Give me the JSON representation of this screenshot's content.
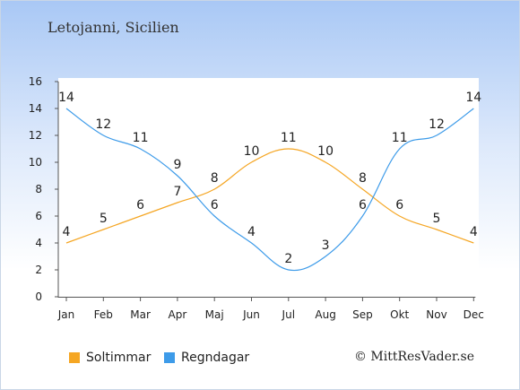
{
  "title": "Letojanni, Sicilien",
  "credit": "© MittResVader.se",
  "chart_data": {
    "type": "line",
    "categories": [
      "Jan",
      "Feb",
      "Mar",
      "Apr",
      "Maj",
      "Jun",
      "Jul",
      "Aug",
      "Sep",
      "Okt",
      "Nov",
      "Dec"
    ],
    "ylim": [
      0,
      16
    ],
    "yticks": [
      0,
      2,
      4,
      6,
      8,
      10,
      12,
      14,
      16
    ],
    "grid": false,
    "legend_position": "bottom-left",
    "series": [
      {
        "name": "Soltimmar",
        "color": "#f5a623",
        "values": [
          4,
          5,
          6,
          7,
          8,
          10,
          11,
          10,
          8,
          6,
          5,
          4
        ]
      },
      {
        "name": "Regndagar",
        "color": "#3d9be9",
        "values": [
          14,
          12,
          11,
          9,
          6,
          4,
          2,
          3,
          6,
          11,
          12,
          14
        ]
      }
    ]
  }
}
